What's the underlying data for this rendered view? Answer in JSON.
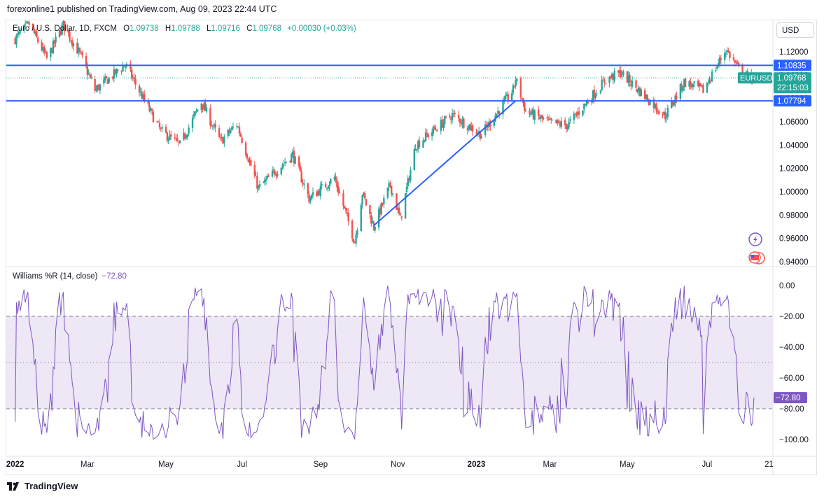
{
  "header": {
    "published": "forexonline1 published on TradingView.com, Aug 09, 2023 22:44 UTC"
  },
  "legend": {
    "symbol": "Euro / U.S. Dollar, 1D, FXCM",
    "o_label": "O",
    "o": "1.09738",
    "h_label": "H",
    "h": "1.09788",
    "l_label": "L",
    "l": "1.09716",
    "c_label": "C",
    "c": "1.09768",
    "change": "+0.00030 (+0.03%)"
  },
  "currency_button": "USD",
  "indicator_legend": {
    "name": "Williams %R (14, close)",
    "value": "−72.80"
  },
  "footer": {
    "brand": "TradingView"
  },
  "colors": {
    "up": "#26a69a",
    "down": "#ef5350",
    "lines": "#2962ff",
    "wr": "#7e57c2",
    "wr_band": "#ede7f6"
  },
  "chart_data": [
    {
      "type": "candlestick",
      "title": "Euro / U.S. Dollar, 1D, FXCM",
      "x_ticks": [
        "2022",
        "Mar",
        "May",
        "Jul",
        "Sep",
        "Nov",
        "2023",
        "Mar",
        "May",
        "Jul",
        "21"
      ],
      "y_ticks": [
        "1.12000",
        "1.10000",
        "1.08000",
        "1.06000",
        "1.04000",
        "1.02000",
        "1.00000",
        "0.98000",
        "0.96000",
        "0.94000"
      ],
      "ylim": [
        0.9385,
        1.1432
      ],
      "horizontal_levels": [
        {
          "label": "1.10835",
          "value": 1.10835
        },
        {
          "label": "1.07794",
          "value": 1.07794
        }
      ],
      "trendline": {
        "from": {
          "date": "2022-10-13",
          "price": 0.971
        },
        "to": {
          "date": "2023-02-02",
          "price": 1.078
        }
      },
      "last_price": {
        "symbol": "EURUSD",
        "value": "1.09768",
        "countdown": "22:15:03"
      },
      "anchors": [
        [
          "2022-01-03",
          1.131
        ],
        [
          "2022-01-14",
          1.144
        ],
        [
          "2022-01-28",
          1.114
        ],
        [
          "2022-02-10",
          1.143
        ],
        [
          "2022-02-24",
          1.116
        ],
        [
          "2022-03-07",
          1.087
        ],
        [
          "2022-03-31",
          1.109
        ],
        [
          "2022-04-14",
          1.08
        ],
        [
          "2022-04-28",
          1.052
        ],
        [
          "2022-05-13",
          1.04
        ],
        [
          "2022-05-30",
          1.077
        ],
        [
          "2022-06-14",
          1.043
        ],
        [
          "2022-06-27",
          1.058
        ],
        [
          "2022-07-14",
          1.003
        ],
        [
          "2022-08-10",
          1.032
        ],
        [
          "2022-08-23",
          0.994
        ],
        [
          "2022-09-12",
          1.012
        ],
        [
          "2022-09-28",
          0.957
        ],
        [
          "2022-10-04",
          0.999
        ],
        [
          "2022-10-13",
          0.97
        ],
        [
          "2022-10-26",
          1.006
        ],
        [
          "2022-11-03",
          0.976
        ],
        [
          "2022-11-15",
          1.04
        ],
        [
          "2022-12-14",
          1.066
        ],
        [
          "2023-01-06",
          1.049
        ],
        [
          "2023-01-31",
          1.087
        ],
        [
          "2023-02-02",
          1.097
        ],
        [
          "2023-02-10",
          1.069
        ],
        [
          "2023-03-01",
          1.059
        ],
        [
          "2023-03-15",
          1.057
        ],
        [
          "2023-04-14",
          1.096
        ],
        [
          "2023-04-26",
          1.102
        ],
        [
          "2023-05-31",
          1.065
        ],
        [
          "2023-06-15",
          1.094
        ],
        [
          "2023-06-30",
          1.087
        ],
        [
          "2023-07-18",
          1.122
        ],
        [
          "2023-07-31",
          1.1
        ],
        [
          "2023-08-09",
          1.0977
        ]
      ]
    },
    {
      "type": "line",
      "title": "Williams %R (14, close)",
      "y_ticks": [
        "0.00",
        "−20.00",
        "−40.00",
        "−60.00",
        "−80.00",
        "−100.00"
      ],
      "ylim": [
        -100,
        0
      ],
      "bands": [
        -20,
        -50,
        -80
      ],
      "last_value": "−72.80",
      "last_value_num": -72.8
    }
  ]
}
